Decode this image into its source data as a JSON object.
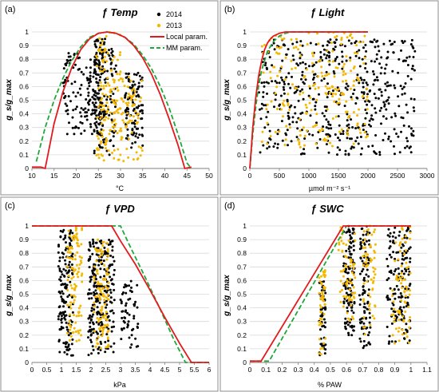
{
  "colors": {
    "y2014": "#000000",
    "y2013": "#f5b800",
    "local": "#e31a1c",
    "mm": "#1fa83a",
    "grid": "#d9d9d9",
    "frame": "#8c8c8c"
  },
  "legend": {
    "y2014": "2014",
    "y2013": "2013",
    "local": "Local param.",
    "mm": "MM param."
  },
  "ylabel": "g_s/g_max",
  "chart_data": [
    {
      "type": "scatter",
      "panel_label": "(a)",
      "title_fn": "ƒ",
      "title_var": "Temp",
      "xlabel": "°C",
      "xlim": [
        10,
        50
      ],
      "ylim": [
        0,
        1.0
      ],
      "xticks": [
        "10",
        "15",
        "20",
        "25",
        "30",
        "35",
        "40",
        "45",
        "50"
      ],
      "yticks": [
        "0",
        "0.1",
        "0.2",
        "0.3",
        "0.4",
        "0.5",
        "0.6",
        "0.7",
        "0.8",
        "0.9",
        "1"
      ],
      "xtick_values": [
        10,
        15,
        20,
        25,
        30,
        35,
        40,
        45,
        50
      ],
      "grid": true,
      "legend": "top-right",
      "curves": {
        "local": [
          [
            10,
            0.01
          ],
          [
            12,
            0.01
          ],
          [
            13,
            0
          ],
          [
            15,
            0.33
          ],
          [
            17,
            0.56
          ],
          [
            19,
            0.74
          ],
          [
            21,
            0.87
          ],
          [
            23,
            0.95
          ],
          [
            25,
            0.99
          ],
          [
            27,
            1.0
          ],
          [
            29,
            0.99
          ],
          [
            31,
            0.96
          ],
          [
            33,
            0.9
          ],
          [
            35,
            0.81
          ],
          [
            37,
            0.69
          ],
          [
            39,
            0.54
          ],
          [
            41,
            0.36
          ],
          [
            43,
            0.17
          ],
          [
            44.5,
            0.0
          ],
          [
            46,
            0.01
          ]
        ],
        "mm": [
          [
            11,
            0.05
          ],
          [
            13,
            0.3
          ],
          [
            15,
            0.5
          ],
          [
            17,
            0.66
          ],
          [
            19,
            0.79
          ],
          [
            21,
            0.89
          ],
          [
            23,
            0.96
          ],
          [
            25,
            0.99
          ],
          [
            27,
            1.0
          ],
          [
            29,
            0.99
          ],
          [
            31,
            0.96
          ],
          [
            33,
            0.91
          ],
          [
            35,
            0.83
          ],
          [
            37,
            0.73
          ],
          [
            39,
            0.6
          ],
          [
            41,
            0.44
          ],
          [
            43,
            0.25
          ],
          [
            45,
            0.04
          ],
          [
            46,
            0.0
          ]
        ]
      },
      "scatter": {
        "y2014": {
          "clusters": [
            [
              [
                17,
                26
              ],
              [
                0.25,
                0.85
              ],
              150
            ],
            [
              [
                24,
                26.5
              ],
              [
                0.1,
                0.95
              ],
              120
            ],
            [
              [
                26.5,
                29
              ],
              [
                0.1,
                0.9
              ],
              60
            ],
            [
              [
                31,
                35
              ],
              [
                0.15,
                0.7
              ],
              110
            ]
          ]
        },
        "y2013": {
          "clusters": [
            [
              [
                24.5,
                30
              ],
              [
                0.05,
                1.0
              ],
              140
            ],
            [
              [
                30,
                35
              ],
              [
                0.05,
                0.7
              ],
              70
            ]
          ]
        }
      }
    },
    {
      "type": "scatter",
      "panel_label": "(b)",
      "title_fn": "ƒ",
      "title_var": "Light",
      "xlabel": "µmol m⁻² s⁻¹",
      "xlim": [
        0,
        3000
      ],
      "ylim": [
        0,
        1.0
      ],
      "xticks": [
        "0",
        "500",
        "1000",
        "1500",
        "2000",
        "2500",
        "3000"
      ],
      "yticks": [
        "0",
        "0.1",
        "0.2",
        "0.3",
        "0.4",
        "0.5",
        "0.6",
        "0.7",
        "0.8",
        "0.9",
        "1"
      ],
      "xtick_values": [
        0,
        500,
        1000,
        1500,
        2000,
        2500,
        3000
      ],
      "grid": true,
      "curves": {
        "local": [
          [
            0,
            0.0
          ],
          [
            50,
            0.3
          ],
          [
            100,
            0.52
          ],
          [
            150,
            0.68
          ],
          [
            200,
            0.79
          ],
          [
            250,
            0.87
          ],
          [
            300,
            0.92
          ],
          [
            350,
            0.95
          ],
          [
            400,
            0.97
          ],
          [
            500,
            0.99
          ],
          [
            600,
            1.0
          ],
          [
            2000,
            1.0
          ]
        ],
        "mm": [
          [
            0,
            0.0
          ],
          [
            50,
            0.25
          ],
          [
            100,
            0.45
          ],
          [
            150,
            0.61
          ],
          [
            200,
            0.72
          ],
          [
            300,
            0.86
          ],
          [
            400,
            0.93
          ],
          [
            500,
            0.97
          ],
          [
            600,
            0.99
          ],
          [
            700,
            1.0
          ],
          [
            2000,
            1.0
          ]
        ]
      },
      "scatter": {
        "y2014": {
          "clusters": [
            [
              [
                150,
                2800
              ],
              [
                0.1,
                0.95
              ],
              520
            ]
          ]
        },
        "y2013": {
          "clusters": [
            [
              [
                200,
                2000
              ],
              [
                0.15,
                1.0
              ],
              230
            ]
          ]
        }
      }
    },
    {
      "type": "scatter",
      "panel_label": "(c)",
      "title_fn": "ƒ",
      "title_var": "VPD",
      "xlabel": "kPa",
      "xlim": [
        0,
        6
      ],
      "ylim": [
        0,
        1.0
      ],
      "xticks": [
        "0",
        "0.5",
        "1",
        "1.5",
        "2",
        "2.5",
        "3",
        "3.5",
        "4",
        "4.5",
        "5",
        "5.5",
        "6"
      ],
      "yticks": [
        "0",
        "0.1",
        "0.2",
        "0.3",
        "0.4",
        "0.5",
        "0.6",
        "0.7",
        "0.8",
        "0.9",
        "1"
      ],
      "xtick_values": [
        0,
        0.5,
        1,
        1.5,
        2,
        2.5,
        3,
        3.5,
        4,
        4.5,
        5,
        5.5,
        6
      ],
      "grid": true,
      "curves": {
        "local": [
          [
            0,
            1.0
          ],
          [
            2.7,
            1.0
          ],
          [
            3.0,
            0.89
          ],
          [
            3.5,
            0.72
          ],
          [
            4.0,
            0.53
          ],
          [
            4.5,
            0.33
          ],
          [
            5.0,
            0.14
          ],
          [
            5.4,
            0.0
          ],
          [
            6,
            0.0
          ]
        ],
        "mm": [
          [
            0,
            1.0
          ],
          [
            3.0,
            1.0
          ],
          [
            3.3,
            0.86
          ],
          [
            3.8,
            0.64
          ],
          [
            4.3,
            0.41
          ],
          [
            4.8,
            0.17
          ],
          [
            5.2,
            0.0
          ],
          [
            6,
            0.0
          ]
        ]
      },
      "scatter": {
        "y2014": {
          "clusters": [
            [
              [
                0.9,
                1.4
              ],
              [
                0.05,
                0.97
              ],
              160
            ],
            [
              [
                1.9,
                2.4
              ],
              [
                0.05,
                0.9
              ],
              160
            ],
            [
              [
                2.4,
                2.8
              ],
              [
                0.05,
                0.9
              ],
              90
            ],
            [
              [
                3.0,
                3.6
              ],
              [
                0.1,
                0.6
              ],
              60
            ]
          ]
        },
        "y2013": {
          "clusters": [
            [
              [
                1.2,
                1.7
              ],
              [
                0.15,
                1.0
              ],
              110
            ],
            [
              [
                2.1,
                2.6
              ],
              [
                0.1,
                0.9
              ],
              120
            ]
          ]
        }
      }
    },
    {
      "type": "scatter",
      "panel_label": "(d)",
      "title_fn": "ƒ",
      "title_var": "SWC",
      "xlabel": "% PAW",
      "xlim": [
        0,
        1.1
      ],
      "ylim": [
        0,
        1.0
      ],
      "xticks": [
        "0",
        "0.1",
        "0.2",
        "0.3",
        "0.4",
        "0.5",
        "0.6",
        "0.7",
        "0.8",
        "0.9",
        "1",
        "1.1"
      ],
      "yticks": [
        "0",
        "0.1",
        "0.2",
        "0.3",
        "0.4",
        "0.5",
        "0.6",
        "0.7",
        "0.8",
        "0.9",
        "1"
      ],
      "xtick_values": [
        0,
        0.1,
        0.2,
        0.3,
        0.4,
        0.5,
        0.6,
        0.7,
        0.8,
        0.9,
        1,
        1.1
      ],
      "grid": true,
      "curves": {
        "local": [
          [
            0,
            0.01
          ],
          [
            0.07,
            0.01
          ],
          [
            0.58,
            1.0
          ],
          [
            1.0,
            1.0
          ]
        ],
        "mm": [
          [
            0,
            0.01
          ],
          [
            0.12,
            0.01
          ],
          [
            0.6,
            1.0
          ],
          [
            1.0,
            1.0
          ]
        ]
      },
      "scatter": {
        "y2014": {
          "clusters": [
            [
              [
                0.43,
                0.47
              ],
              [
                0.05,
                0.6
              ],
              50
            ],
            [
              [
                0.58,
                0.65
              ],
              [
                0.2,
                1.0
              ],
              120
            ],
            [
              [
                0.68,
                0.75
              ],
              [
                0.1,
                1.0
              ],
              100
            ],
            [
              [
                0.85,
                1.0
              ],
              [
                0.1,
                1.0
              ],
              150
            ]
          ]
        },
        "y2013": {
          "clusters": [
            [
              [
                0.43,
                0.47
              ],
              [
                0.05,
                0.7
              ],
              50
            ],
            [
              [
                0.55,
                0.66
              ],
              [
                0.3,
                1.0
              ],
              70
            ],
            [
              [
                0.7,
                0.78
              ],
              [
                0.2,
                1.0
              ],
              60
            ],
            [
              [
                0.88,
                1.0
              ],
              [
                0.1,
                1.0
              ],
              80
            ]
          ]
        }
      }
    }
  ]
}
